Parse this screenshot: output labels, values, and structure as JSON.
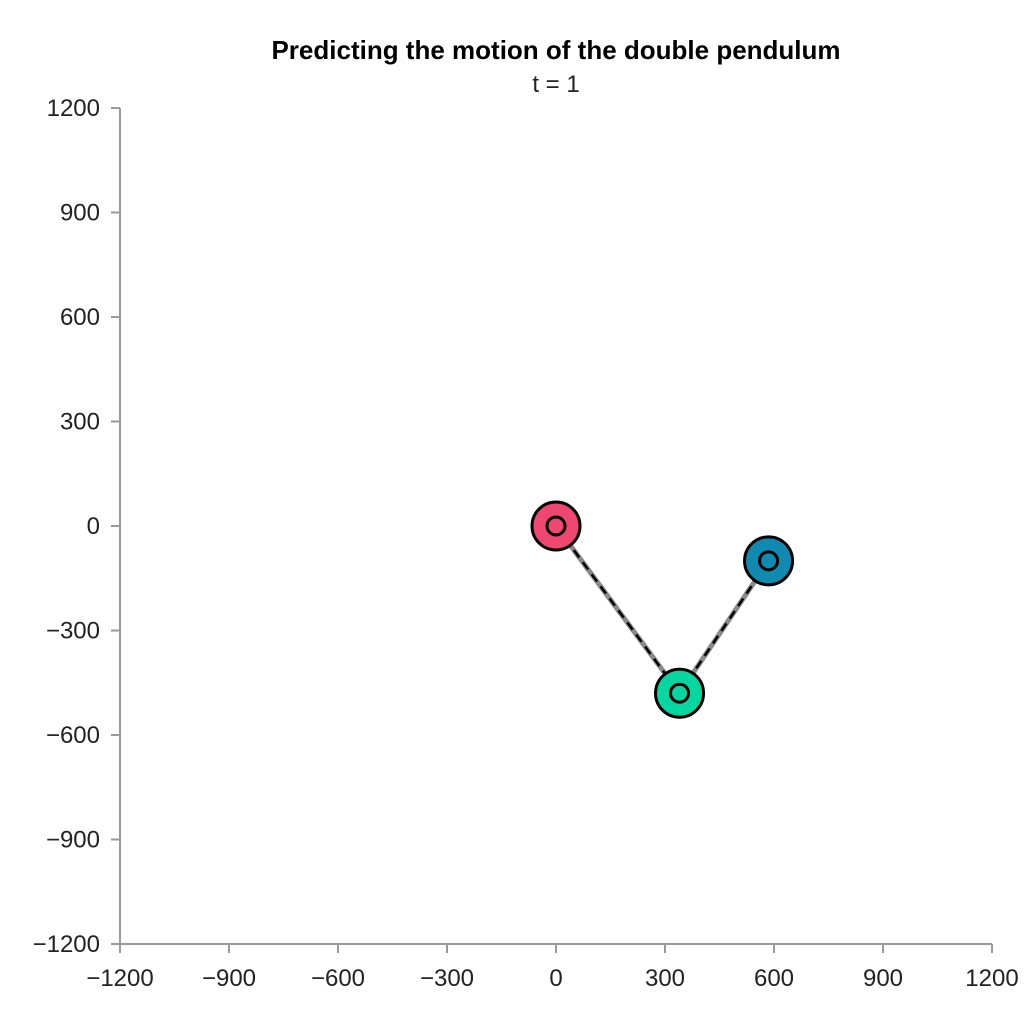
{
  "chart_data": {
    "type": "scatter",
    "title": "Predicting the motion of the double pendulum",
    "subtitle": "t = 1",
    "xlabel": "",
    "ylabel": "",
    "xlim": [
      -1200,
      1200
    ],
    "ylim": [
      -1200,
      1200
    ],
    "xticks": [
      -1200,
      -900,
      -600,
      -300,
      0,
      300,
      600,
      900,
      1200
    ],
    "yticks": [
      -1200,
      -900,
      -600,
      -300,
      0,
      300,
      600,
      900,
      1200
    ],
    "xtick_labels": [
      "−1200",
      "−900",
      "−600",
      "−300",
      "0",
      "300",
      "600",
      "900",
      "1200"
    ],
    "ytick_labels": [
      "−1200",
      "−900",
      "−600",
      "−300",
      "0",
      "300",
      "600",
      "900",
      "1200"
    ],
    "grid": false,
    "rods": [
      {
        "from": 0,
        "to": 1
      },
      {
        "from": 1,
        "to": 2
      }
    ],
    "points": [
      {
        "x": 0,
        "y": 0,
        "color": "#ef476f"
      },
      {
        "x": 340,
        "y": -480,
        "color": "#06d6a0"
      },
      {
        "x": 585,
        "y": -100,
        "color": "#118ab2"
      }
    ]
  }
}
